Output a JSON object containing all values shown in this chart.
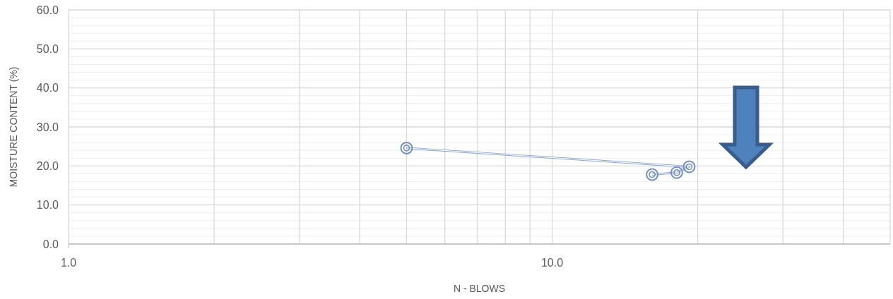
{
  "chart_data": {
    "type": "line",
    "xlabel": "N - BLOWS",
    "ylabel": "MOISTURE CONTENT (%)",
    "x": [
      5.0,
      19.2,
      18.1,
      16.1
    ],
    "series": [
      {
        "color": "#6f8fc0",
        "values": [
          24.6,
          19.8,
          18.3,
          17.8
        ]
      }
    ],
    "marker": "circle",
    "log": "x",
    "grid": true,
    "xlim": [
      1,
      50
    ],
    "ylim": [
      0,
      60
    ],
    "xticks": [
      {
        "value": 1,
        "label": "1.0"
      },
      {
        "value": 2,
        "label": null
      },
      {
        "value": 3,
        "label": null
      },
      {
        "value": 4,
        "label": null
      },
      {
        "value": 5,
        "label": null
      },
      {
        "value": 6,
        "label": null
      },
      {
        "value": 7,
        "label": null
      },
      {
        "value": 8,
        "label": null
      },
      {
        "value": 9,
        "label": null
      },
      {
        "value": 10,
        "label": "10.0"
      },
      {
        "value": 20,
        "label": null
      },
      {
        "value": 30,
        "label": null
      },
      {
        "value": 40,
        "label": null
      }
    ],
    "yticks": [
      {
        "value": 0,
        "label": "0.0"
      },
      {
        "value": 2,
        "label": null
      },
      {
        "value": 4,
        "label": null
      },
      {
        "value": 6,
        "label": null
      },
      {
        "value": 8,
        "label": null
      },
      {
        "value": 10,
        "label": "10.0"
      },
      {
        "value": 12,
        "label": null
      },
      {
        "value": 14,
        "label": null
      },
      {
        "value": 16,
        "label": null
      },
      {
        "value": 18,
        "label": null
      },
      {
        "value": 20,
        "label": "20.0"
      },
      {
        "value": 22,
        "label": null
      },
      {
        "value": 24,
        "label": null
      },
      {
        "value": 26,
        "label": null
      },
      {
        "value": 28,
        "label": null
      },
      {
        "value": 30,
        "label": "30.0"
      },
      {
        "value": 32,
        "label": null
      },
      {
        "value": 34,
        "label": null
      },
      {
        "value": 36,
        "label": null
      },
      {
        "value": 38,
        "label": null
      },
      {
        "value": 40,
        "label": "40.0"
      },
      {
        "value": 42,
        "label": null
      },
      {
        "value": 44,
        "label": null
      },
      {
        "value": 46,
        "label": null
      },
      {
        "value": 48,
        "label": null
      },
      {
        "value": 50,
        "label": "50.0"
      },
      {
        "value": 52,
        "label": null
      },
      {
        "value": 54,
        "label": null
      },
      {
        "value": 56,
        "label": null
      },
      {
        "value": 58,
        "label": null
      },
      {
        "value": 60,
        "label": "60.0"
      }
    ]
  }
}
